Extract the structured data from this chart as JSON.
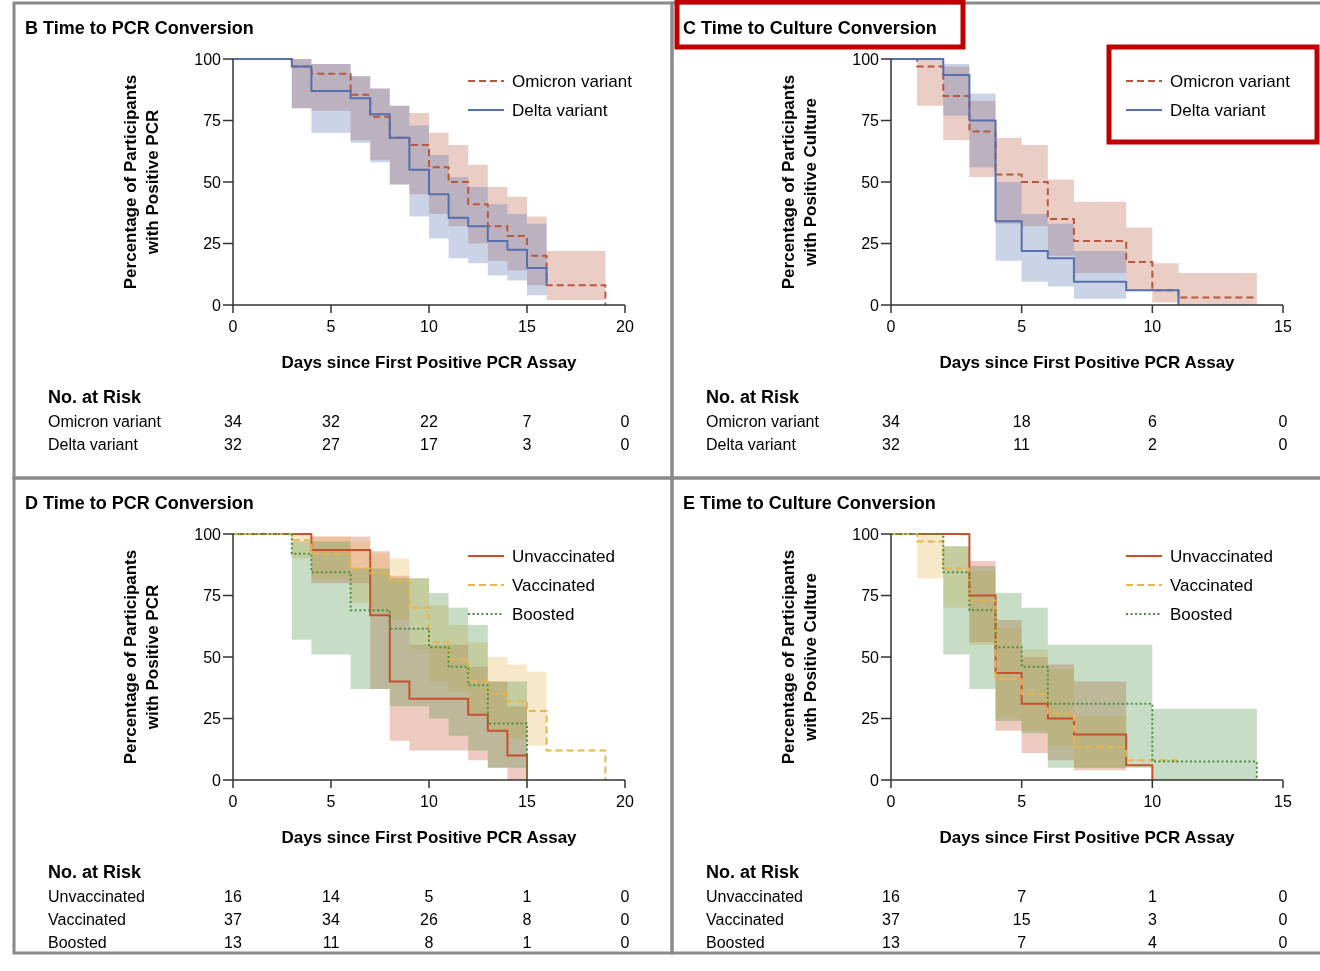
{
  "chart_data": [
    {
      "type": "step",
      "title": "B  Time to PCR Conversion",
      "xlabel": "Days since First Positive PCR Assay",
      "ylabel": "Percentage of Participants\nwith Positive PCR",
      "xlim": [
        0,
        20
      ],
      "xticks": [
        0,
        5,
        10,
        15,
        20
      ],
      "ylim": [
        0,
        100
      ],
      "yticks": [
        0,
        25,
        50,
        75,
        100
      ],
      "legend": "top right",
      "annotations": [
        "No. at Risk",
        "34 32 22 7 0",
        "32 27 17 3 0"
      ],
      "series": [
        {
          "name": "Omicron variant",
          "color": "#b8583e",
          "line_style": "dashed",
          "x": [
            0,
            3,
            4,
            6,
            7,
            8,
            9,
            10,
            11,
            12,
            13,
            14,
            15,
            16,
            19
          ],
          "values": [
            100,
            97,
            94,
            85.5,
            76.5,
            68,
            65,
            56,
            50,
            41,
            32,
            28,
            20,
            8,
            0
          ],
          "lower": [
            null,
            80,
            79,
            67,
            59,
            49,
            45,
            37,
            32,
            25,
            18,
            14,
            8,
            2,
            2
          ],
          "upper": [
            null,
            100,
            98,
            93,
            88,
            81,
            78,
            70,
            65,
            57,
            48,
            44,
            36,
            22,
            22
          ]
        },
        {
          "name": "Delta variant",
          "color": "#5470b0",
          "line_style": "solid",
          "x": [
            0,
            3,
            4,
            6,
            7,
            8,
            9,
            10,
            11,
            12,
            13,
            14,
            15,
            16
          ],
          "values": [
            100,
            97,
            87,
            84,
            77.5,
            68,
            55,
            45,
            35.5,
            32,
            26,
            22.5,
            15,
            8
          ],
          "lower": [
            null,
            80,
            70,
            66,
            58,
            49,
            36,
            27,
            19,
            17,
            12,
            10,
            4,
            4
          ],
          "upper": [
            null,
            100,
            98,
            93,
            88,
            81,
            73,
            61,
            52,
            48,
            41,
            37,
            33,
            33
          ]
        }
      ]
    },
    {
      "type": "step",
      "title": "C  Time to Culture Conversion",
      "xlabel": "Days since First Positive PCR Assay",
      "ylabel": "Percentage of Participants\nwith Positive Culture",
      "xlim": [
        0,
        15
      ],
      "xticks": [
        0,
        5,
        10,
        15
      ],
      "ylim": [
        0,
        100
      ],
      "yticks": [
        0,
        25,
        50,
        75,
        100
      ],
      "legend": "top right",
      "annotations": [
        "No. at Risk",
        "34 18 6 0",
        "32 11 2 0"
      ],
      "series": [
        {
          "name": "Omicron variant",
          "color": "#b8583e",
          "line_style": "dashed",
          "x": [
            0,
            1,
            2,
            3,
            4,
            5,
            6,
            7,
            9,
            10,
            11,
            14
          ],
          "values": [
            100,
            97,
            85,
            70.5,
            53,
            50,
            35,
            26,
            17.5,
            6,
            3,
            3
          ],
          "lower": [
            null,
            81,
            67,
            52,
            33,
            32,
            20,
            13,
            6,
            1,
            0,
            0
          ],
          "upper": [
            null,
            100,
            97,
            83,
            68,
            65,
            51,
            42,
            31.5,
            17,
            13,
            13
          ]
        },
        {
          "name": "Delta variant",
          "color": "#5470b0",
          "line_style": "solid",
          "x": [
            0,
            2,
            3,
            4,
            5,
            6,
            7,
            9,
            11
          ],
          "values": [
            100,
            93.5,
            75,
            34,
            22,
            19,
            9.5,
            6,
            0
          ],
          "lower": [
            null,
            77,
            56,
            18,
            9.5,
            7.5,
            2.5,
            2.5,
            null
          ],
          "upper": [
            null,
            98,
            86,
            50,
            37,
            33,
            22,
            22,
            null
          ]
        }
      ]
    },
    {
      "type": "step",
      "title": "D  Time to PCR Conversion",
      "xlabel": "Days since First Positive PCR Assay",
      "ylabel": "Percentage of Participants\nwith Positive PCR",
      "xlim": [
        0,
        20
      ],
      "xticks": [
        0,
        5,
        10,
        15,
        20
      ],
      "ylim": [
        0,
        100
      ],
      "yticks": [
        0,
        25,
        50,
        75,
        100
      ],
      "legend": "top right",
      "annotations": [
        "No. at Risk",
        "16 14 5 1 0",
        "37 34 26 8 0",
        "13 11 8 1 0"
      ],
      "series": [
        {
          "name": "Unvaccinated",
          "color": "#c8502d",
          "line_style": "solid",
          "x": [
            0,
            4,
            7,
            8,
            9,
            12,
            13,
            14,
            15
          ],
          "values": [
            100,
            93.5,
            67,
            40,
            33,
            26.5,
            20,
            10,
            0
          ],
          "lower": [
            null,
            80,
            37,
            16,
            12,
            8,
            5,
            0,
            0
          ],
          "upper": [
            null,
            99,
            93,
            83,
            55,
            46,
            40,
            30,
            30
          ]
        },
        {
          "name": "Vaccinated",
          "color": "#e8b450",
          "line_style": "dashed",
          "x": [
            0,
            3,
            4,
            6,
            7,
            8,
            9,
            10,
            11,
            12,
            13,
            14,
            15,
            16,
            19
          ],
          "values": [
            100,
            97.5,
            92,
            86,
            84,
            81,
            70,
            56,
            49,
            40,
            35,
            32,
            28,
            12,
            0
          ],
          "lower": [
            null,
            90,
            82,
            72,
            68,
            65,
            53,
            40,
            36,
            27,
            20,
            17,
            14,
            14,
            null
          ],
          "upper": [
            null,
            100,
            99,
            97,
            92,
            90,
            82,
            71,
            63,
            56,
            50,
            47,
            44,
            44,
            null
          ]
        },
        {
          "name": "Boosted",
          "color": "#4a9040",
          "line_style": "dotted",
          "x": [
            0,
            3,
            4,
            6,
            8,
            10,
            11,
            12,
            13,
            15
          ],
          "values": [
            100,
            92,
            84.5,
            69,
            61.5,
            54,
            46,
            38.5,
            23,
            0
          ],
          "lower": [
            null,
            57,
            51,
            37,
            30,
            25,
            18,
            12,
            5,
            5
          ],
          "upper": [
            null,
            97,
            97,
            86,
            82,
            76,
            70,
            63,
            40,
            40
          ]
        }
      ]
    },
    {
      "type": "step",
      "title": "E  Time to Culture Conversion",
      "xlabel": "Days since First Positive PCR Assay",
      "ylabel": "Percentage of Participants\nwith Positive Culture",
      "xlim": [
        0,
        15
      ],
      "xticks": [
        0,
        5,
        10,
        15
      ],
      "ylim": [
        0,
        100
      ],
      "yticks": [
        0,
        25,
        50,
        75,
        100
      ],
      "legend": "top right",
      "annotations": [
        "No. at Risk",
        "16 7 1 0",
        "37 15 3 0",
        "13 7 4 0"
      ],
      "series": [
        {
          "name": "Unvaccinated",
          "color": "#c8502d",
          "line_style": "solid",
          "x": [
            0,
            3,
            4,
            5,
            6,
            7,
            9,
            10
          ],
          "values": [
            100,
            75,
            43.5,
            31,
            25,
            18.5,
            6,
            0
          ],
          "lower": [
            null,
            56,
            20,
            11,
            8,
            4,
            4,
            null
          ],
          "upper": [
            null,
            89,
            65,
            50,
            47,
            40,
            40,
            null
          ]
        },
        {
          "name": "Vaccinated",
          "color": "#e8b450",
          "line_style": "dashed",
          "x": [
            0,
            1,
            2,
            3,
            4,
            5,
            6,
            7,
            9,
            11
          ],
          "values": [
            100,
            97,
            86,
            73,
            41,
            35,
            27,
            13.5,
            8,
            8
          ],
          "lower": [
            null,
            82,
            70,
            55,
            25,
            20,
            14,
            5,
            5,
            null
          ],
          "upper": [
            null,
            100,
            95,
            85,
            62,
            53,
            45,
            26,
            26,
            null
          ]
        },
        {
          "name": "Boosted",
          "color": "#4a9040",
          "line_style": "dotted",
          "x": [
            0,
            2,
            3,
            4,
            5,
            6,
            10,
            14
          ],
          "values": [
            100,
            84.5,
            69,
            54,
            46,
            31,
            7.5,
            0
          ],
          "lower": [
            null,
            51,
            37,
            24,
            19,
            5,
            0,
            0
          ],
          "upper": [
            null,
            95,
            87,
            76,
            70,
            55,
            29,
            29
          ]
        }
      ]
    }
  ]
}
